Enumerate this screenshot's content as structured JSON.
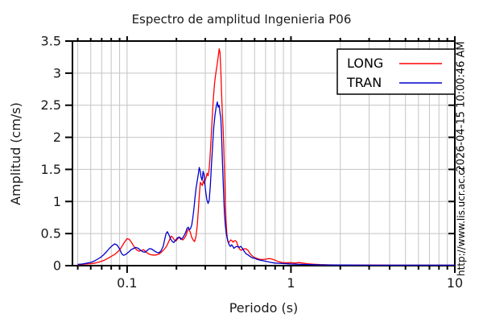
{
  "annotations": {
    "timestamp": "2026-04-15 10:00:46 AM",
    "url": "http://www.lis.ucr.ac.cr"
  },
  "chart_data": {
    "type": "line",
    "title": "Espectro de amplitud Ingenieria P06",
    "xlabel": "Periodo (s)",
    "ylabel": "Amplitud (cm/s)",
    "x_scale": "log",
    "xlim": [
      0.0464,
      10
    ],
    "ylim": [
      0,
      3.5
    ],
    "grid": true,
    "legend_position": "top-right",
    "x_major_ticks": [
      {
        "value": 0.1,
        "label": "0.1"
      },
      {
        "value": 1,
        "label": "1"
      },
      {
        "value": 10,
        "label": "10"
      }
    ],
    "x_minor_ticks": [
      0.05,
      0.06,
      0.07,
      0.08,
      0.09,
      0.2,
      0.3,
      0.4,
      0.5,
      0.6,
      0.7,
      0.8,
      0.9,
      2,
      3,
      4,
      5,
      6,
      7,
      8,
      9
    ],
    "y_ticks": [
      {
        "value": 0,
        "label": "0"
      },
      {
        "value": 0.5,
        "label": "0.5"
      },
      {
        "value": 1,
        "label": "1"
      },
      {
        "value": 1.5,
        "label": "1.5"
      },
      {
        "value": 2,
        "label": "2"
      },
      {
        "value": 2.5,
        "label": "2.5"
      },
      {
        "value": 3,
        "label": "3"
      },
      {
        "value": 3.5,
        "label": "3.5"
      }
    ],
    "colors": {
      "grid": "#c4c4c4",
      "axis": "#000000",
      "long": "#ff0000",
      "tran": "#0000cd"
    },
    "series": [
      {
        "name": "LONG",
        "color": "#ff0000",
        "points": [
          [
            0.05,
            0.015
          ],
          [
            0.053,
            0.02
          ],
          [
            0.056,
            0.025
          ],
          [
            0.06,
            0.03
          ],
          [
            0.064,
            0.04
          ],
          [
            0.068,
            0.06
          ],
          [
            0.072,
            0.08
          ],
          [
            0.076,
            0.11
          ],
          [
            0.08,
            0.145
          ],
          [
            0.084,
            0.175
          ],
          [
            0.088,
            0.22
          ],
          [
            0.092,
            0.28
          ],
          [
            0.096,
            0.36
          ],
          [
            0.1,
            0.42
          ],
          [
            0.103,
            0.41
          ],
          [
            0.106,
            0.37
          ],
          [
            0.11,
            0.3
          ],
          [
            0.114,
            0.25
          ],
          [
            0.118,
            0.225
          ],
          [
            0.122,
            0.235
          ],
          [
            0.126,
            0.25
          ],
          [
            0.13,
            0.22
          ],
          [
            0.134,
            0.19
          ],
          [
            0.139,
            0.17
          ],
          [
            0.144,
            0.165
          ],
          [
            0.15,
            0.165
          ],
          [
            0.156,
            0.18
          ],
          [
            0.162,
            0.21
          ],
          [
            0.168,
            0.25
          ],
          [
            0.174,
            0.3
          ],
          [
            0.18,
            0.38
          ],
          [
            0.186,
            0.46
          ],
          [
            0.19,
            0.44
          ],
          [
            0.194,
            0.4
          ],
          [
            0.199,
            0.385
          ],
          [
            0.204,
            0.42
          ],
          [
            0.209,
            0.445
          ],
          [
            0.214,
            0.42
          ],
          [
            0.219,
            0.4
          ],
          [
            0.224,
            0.43
          ],
          [
            0.229,
            0.47
          ],
          [
            0.234,
            0.55
          ],
          [
            0.238,
            0.57
          ],
          [
            0.243,
            0.52
          ],
          [
            0.248,
            0.44
          ],
          [
            0.253,
            0.4
          ],
          [
            0.258,
            0.375
          ],
          [
            0.263,
            0.45
          ],
          [
            0.268,
            0.62
          ],
          [
            0.272,
            0.85
          ],
          [
            0.276,
            1.1
          ],
          [
            0.28,
            1.3
          ],
          [
            0.284,
            1.27
          ],
          [
            0.288,
            1.25
          ],
          [
            0.292,
            1.32
          ],
          [
            0.296,
            1.28
          ],
          [
            0.3,
            1.33
          ],
          [
            0.304,
            1.38
          ],
          [
            0.308,
            1.44
          ],
          [
            0.312,
            1.4
          ],
          [
            0.316,
            1.48
          ],
          [
            0.32,
            1.65
          ],
          [
            0.325,
            1.95
          ],
          [
            0.33,
            2.25
          ],
          [
            0.336,
            2.6
          ],
          [
            0.342,
            2.85
          ],
          [
            0.348,
            3.0
          ],
          [
            0.354,
            3.12
          ],
          [
            0.36,
            3.26
          ],
          [
            0.365,
            3.38
          ],
          [
            0.369,
            3.32
          ],
          [
            0.373,
            3.05
          ],
          [
            0.377,
            2.7
          ],
          [
            0.381,
            2.4
          ],
          [
            0.385,
            2.15
          ],
          [
            0.389,
            1.85
          ],
          [
            0.393,
            1.45
          ],
          [
            0.397,
            1.05
          ],
          [
            0.401,
            0.72
          ],
          [
            0.406,
            0.5
          ],
          [
            0.411,
            0.39
          ],
          [
            0.416,
            0.355
          ],
          [
            0.422,
            0.375
          ],
          [
            0.429,
            0.4
          ],
          [
            0.436,
            0.39
          ],
          [
            0.443,
            0.365
          ],
          [
            0.45,
            0.385
          ],
          [
            0.458,
            0.39
          ],
          [
            0.466,
            0.37
          ],
          [
            0.475,
            0.31
          ],
          [
            0.485,
            0.26
          ],
          [
            0.495,
            0.24
          ],
          [
            0.507,
            0.25
          ],
          [
            0.52,
            0.265
          ],
          [
            0.534,
            0.26
          ],
          [
            0.548,
            0.235
          ],
          [
            0.562,
            0.19
          ],
          [
            0.578,
            0.155
          ],
          [
            0.595,
            0.13
          ],
          [
            0.615,
            0.115
          ],
          [
            0.64,
            0.1
          ],
          [
            0.67,
            0.095
          ],
          [
            0.7,
            0.1
          ],
          [
            0.73,
            0.11
          ],
          [
            0.76,
            0.105
          ],
          [
            0.8,
            0.085
          ],
          [
            0.84,
            0.06
          ],
          [
            0.88,
            0.05
          ],
          [
            0.93,
            0.045
          ],
          [
            1.0,
            0.047
          ],
          [
            1.06,
            0.04
          ],
          [
            1.12,
            0.048
          ],
          [
            1.18,
            0.04
          ],
          [
            1.26,
            0.03
          ],
          [
            1.36,
            0.022
          ],
          [
            1.5,
            0.016
          ],
          [
            1.7,
            0.012
          ],
          [
            2.0,
            0.01
          ],
          [
            2.5,
            0.009
          ],
          [
            3.2,
            0.009
          ],
          [
            4.5,
            0.008
          ],
          [
            6.5,
            0.008
          ],
          [
            10,
            0.008
          ]
        ]
      },
      {
        "name": "TRAN",
        "color": "#0000cd",
        "points": [
          [
            0.05,
            0.02
          ],
          [
            0.053,
            0.025
          ],
          [
            0.056,
            0.035
          ],
          [
            0.06,
            0.05
          ],
          [
            0.063,
            0.07
          ],
          [
            0.066,
            0.1
          ],
          [
            0.069,
            0.13
          ],
          [
            0.072,
            0.17
          ],
          [
            0.075,
            0.22
          ],
          [
            0.078,
            0.27
          ],
          [
            0.081,
            0.31
          ],
          [
            0.084,
            0.34
          ],
          [
            0.087,
            0.32
          ],
          [
            0.09,
            0.26
          ],
          [
            0.0925,
            0.19
          ],
          [
            0.095,
            0.16
          ],
          [
            0.098,
            0.175
          ],
          [
            0.102,
            0.21
          ],
          [
            0.106,
            0.25
          ],
          [
            0.11,
            0.27
          ],
          [
            0.113,
            0.285
          ],
          [
            0.117,
            0.27
          ],
          [
            0.121,
            0.24
          ],
          [
            0.125,
            0.215
          ],
          [
            0.129,
            0.21
          ],
          [
            0.133,
            0.24
          ],
          [
            0.137,
            0.265
          ],
          [
            0.141,
            0.26
          ],
          [
            0.146,
            0.235
          ],
          [
            0.151,
            0.21
          ],
          [
            0.156,
            0.2
          ],
          [
            0.161,
            0.23
          ],
          [
            0.166,
            0.3
          ],
          [
            0.17,
            0.42
          ],
          [
            0.173,
            0.5
          ],
          [
            0.176,
            0.53
          ],
          [
            0.18,
            0.48
          ],
          [
            0.184,
            0.42
          ],
          [
            0.188,
            0.38
          ],
          [
            0.193,
            0.36
          ],
          [
            0.198,
            0.4
          ],
          [
            0.203,
            0.435
          ],
          [
            0.208,
            0.445
          ],
          [
            0.213,
            0.41
          ],
          [
            0.218,
            0.43
          ],
          [
            0.223,
            0.47
          ],
          [
            0.228,
            0.52
          ],
          [
            0.232,
            0.58
          ],
          [
            0.236,
            0.6
          ],
          [
            0.24,
            0.56
          ],
          [
            0.244,
            0.58
          ],
          [
            0.248,
            0.635
          ],
          [
            0.252,
            0.75
          ],
          [
            0.256,
            0.9
          ],
          [
            0.26,
            1.08
          ],
          [
            0.264,
            1.22
          ],
          [
            0.268,
            1.32
          ],
          [
            0.272,
            1.42
          ],
          [
            0.2755,
            1.53
          ],
          [
            0.279,
            1.48
          ],
          [
            0.283,
            1.38
          ],
          [
            0.287,
            1.33
          ],
          [
            0.291,
            1.47
          ],
          [
            0.295,
            1.42
          ],
          [
            0.299,
            1.25
          ],
          [
            0.303,
            1.12
          ],
          [
            0.307,
            1.03
          ],
          [
            0.312,
            0.97
          ],
          [
            0.317,
            1.02
          ],
          [
            0.322,
            1.25
          ],
          [
            0.327,
            1.55
          ],
          [
            0.332,
            1.85
          ],
          [
            0.338,
            2.15
          ],
          [
            0.344,
            2.35
          ],
          [
            0.35,
            2.48
          ],
          [
            0.3555,
            2.55
          ],
          [
            0.36,
            2.47
          ],
          [
            0.3645,
            2.5
          ],
          [
            0.369,
            2.38
          ],
          [
            0.373,
            2.3
          ],
          [
            0.377,
            2.05
          ],
          [
            0.381,
            1.7
          ],
          [
            0.385,
            1.35
          ],
          [
            0.389,
            1.05
          ],
          [
            0.393,
            0.8
          ],
          [
            0.398,
            0.62
          ],
          [
            0.403,
            0.5
          ],
          [
            0.409,
            0.42
          ],
          [
            0.415,
            0.36
          ],
          [
            0.421,
            0.315
          ],
          [
            0.428,
            0.3
          ],
          [
            0.434,
            0.325
          ],
          [
            0.441,
            0.305
          ],
          [
            0.448,
            0.27
          ],
          [
            0.456,
            0.285
          ],
          [
            0.464,
            0.3
          ],
          [
            0.473,
            0.295
          ],
          [
            0.483,
            0.285
          ],
          [
            0.494,
            0.3
          ],
          [
            0.506,
            0.27
          ],
          [
            0.519,
            0.22
          ],
          [
            0.533,
            0.185
          ],
          [
            0.548,
            0.165
          ],
          [
            0.565,
            0.14
          ],
          [
            0.583,
            0.12
          ],
          [
            0.6,
            0.115
          ],
          [
            0.625,
            0.095
          ],
          [
            0.65,
            0.085
          ],
          [
            0.68,
            0.075
          ],
          [
            0.71,
            0.065
          ],
          [
            0.75,
            0.052
          ],
          [
            0.79,
            0.042
          ],
          [
            0.84,
            0.037
          ],
          [
            0.9,
            0.032
          ],
          [
            0.97,
            0.028
          ],
          [
            1.05,
            0.024
          ],
          [
            1.15,
            0.02
          ],
          [
            1.3,
            0.016
          ],
          [
            1.5,
            0.012
          ],
          [
            1.8,
            0.01
          ],
          [
            2.3,
            0.009
          ],
          [
            3.0,
            0.008
          ],
          [
            4.2,
            0.008
          ],
          [
            6.0,
            0.008
          ],
          [
            10,
            0.008
          ]
        ]
      }
    ]
  }
}
